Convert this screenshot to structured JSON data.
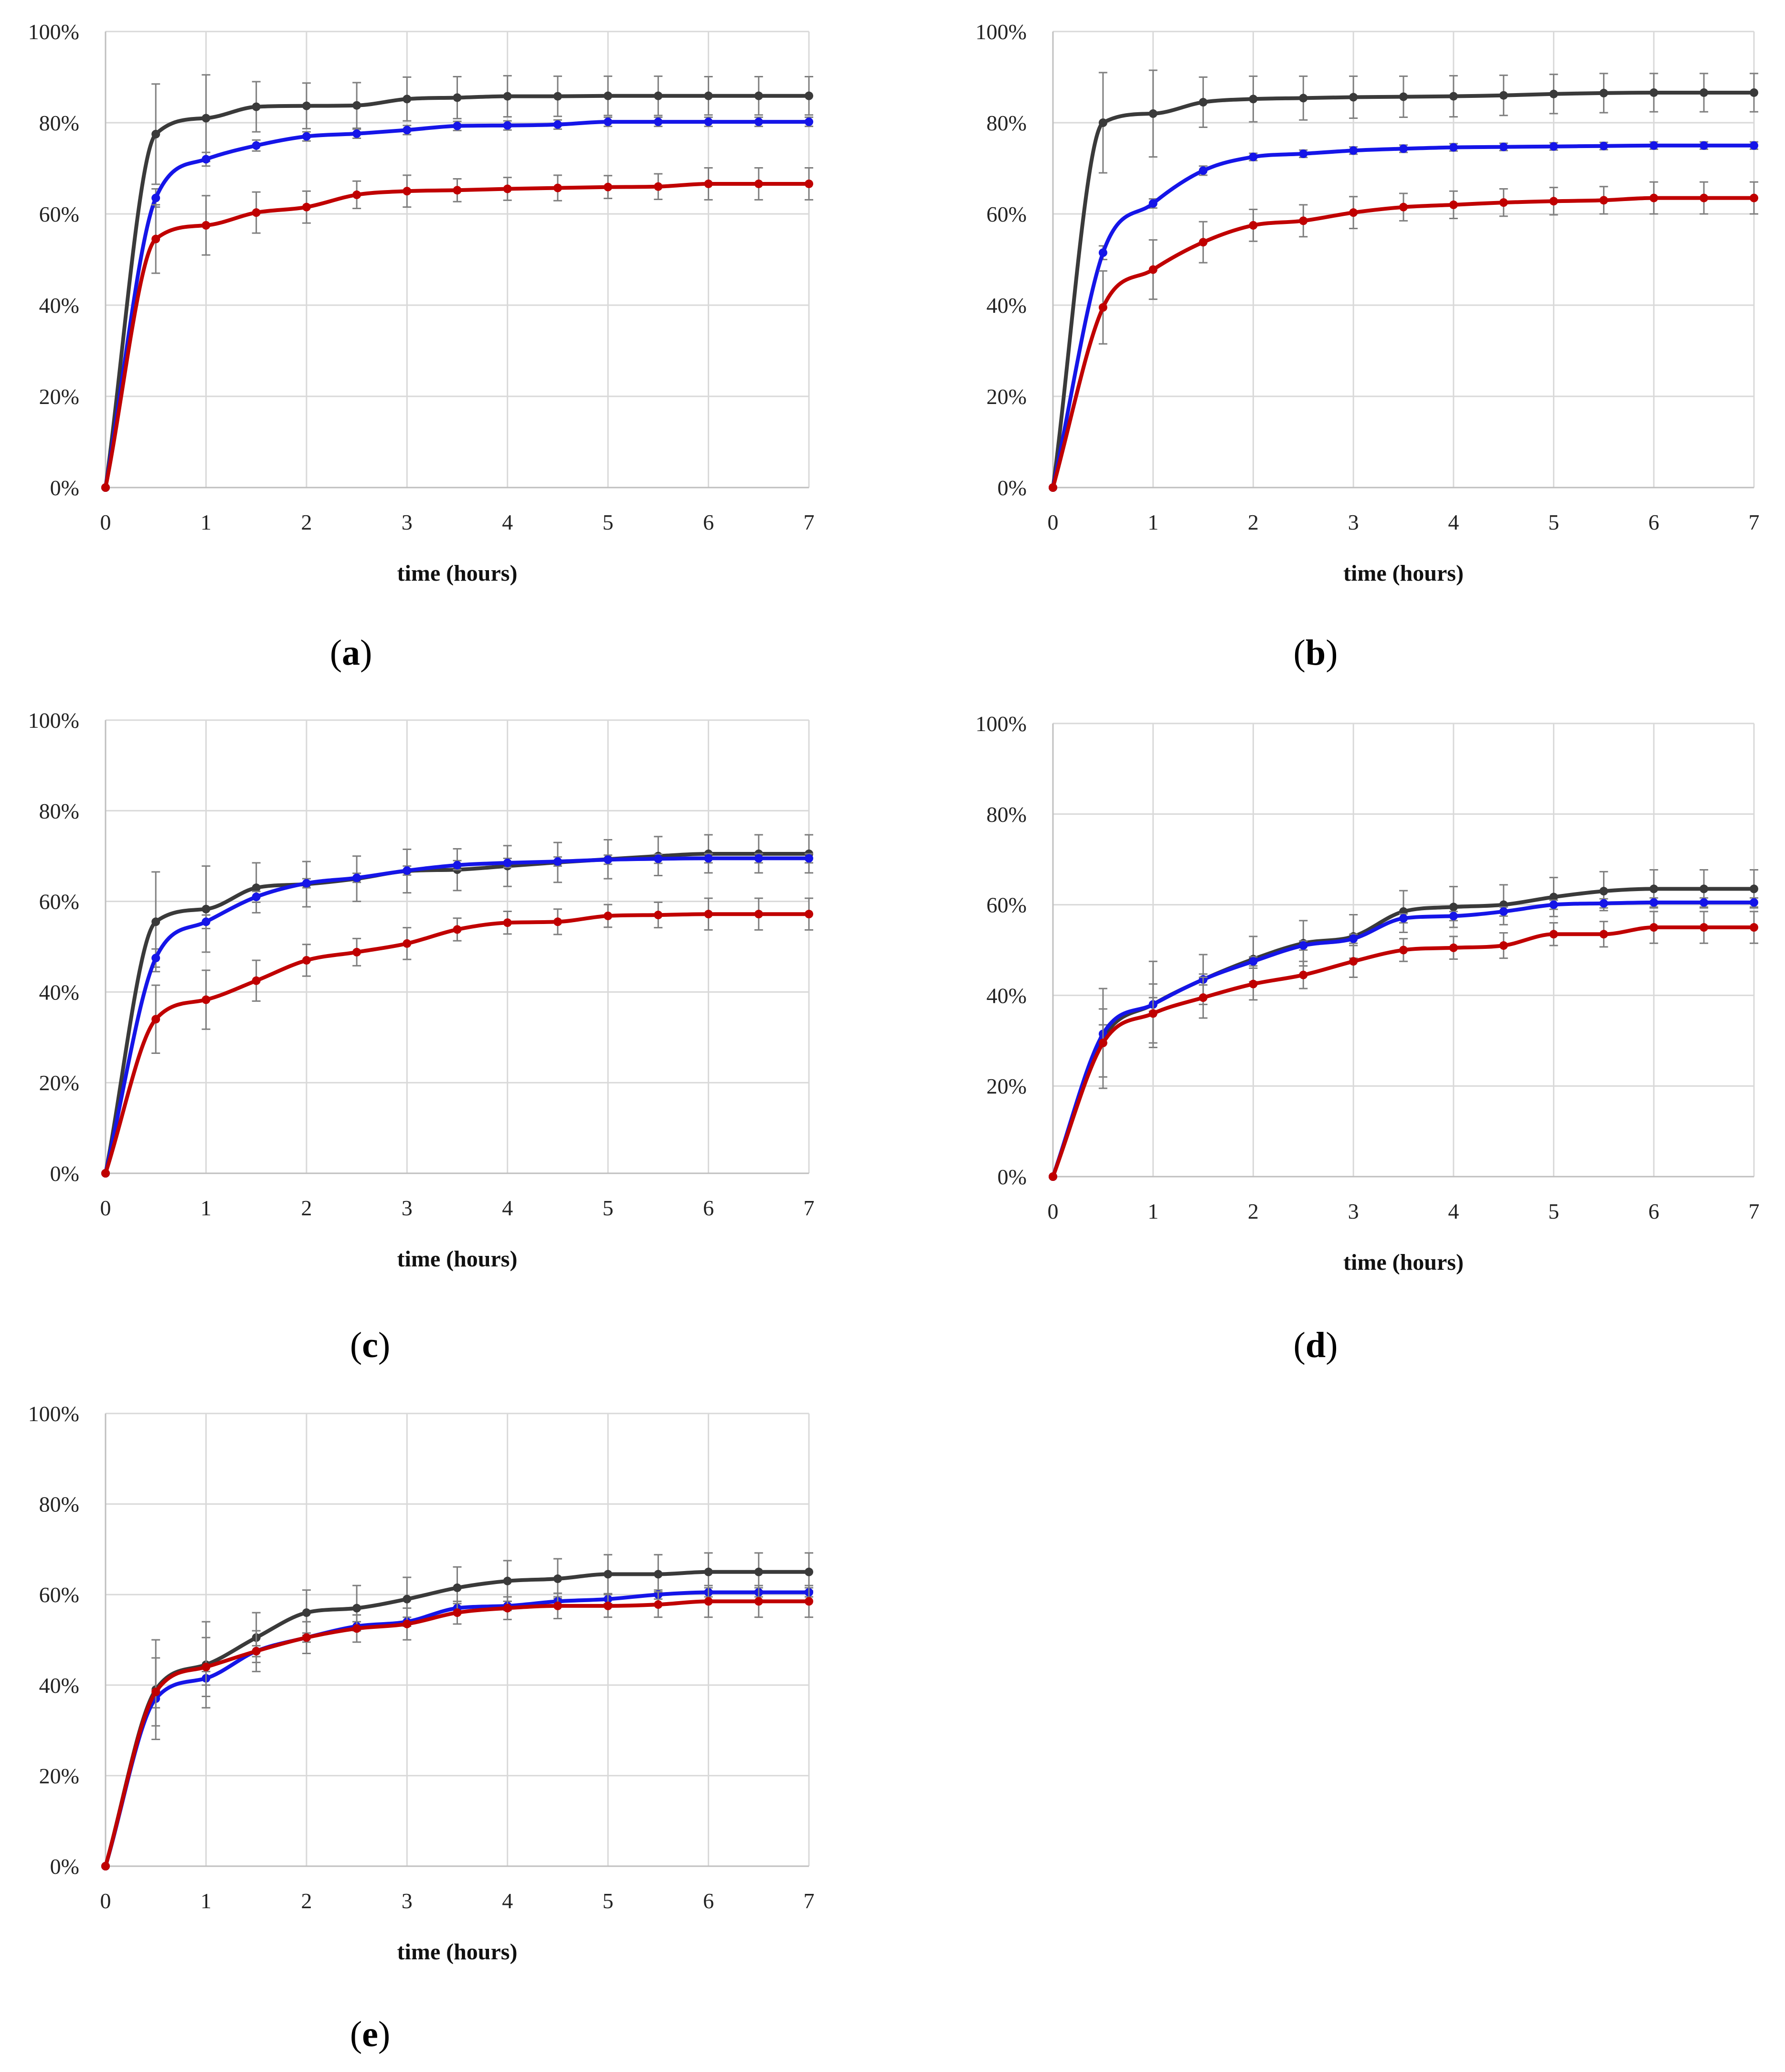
{
  "chart_data": [
    {
      "type": "line",
      "label_letter": "a",
      "xlabel": "time (hours)",
      "ylabel": "",
      "xlim": [
        0,
        7
      ],
      "ylim": [
        0,
        100
      ],
      "x_ticks": [
        "0",
        "1",
        "2",
        "3",
        "4",
        "5",
        "6",
        "7"
      ],
      "y_ticks": [
        "0%",
        "20%",
        "40%",
        "60%",
        "80%",
        "100%"
      ],
      "grid": true,
      "x": [
        0,
        0.5,
        1,
        1.5,
        2,
        2.5,
        3,
        3.5,
        4,
        4.5,
        5,
        5.5,
        6,
        6.5,
        7
      ],
      "series": [
        {
          "name": "black",
          "color": "#3a3a3a",
          "values": [
            0,
            77.5,
            81,
            83.5,
            83.7,
            83.8,
            85.2,
            85.5,
            85.8,
            85.8,
            85.9,
            85.9,
            85.9,
            85.9,
            85.9
          ],
          "errors": [
            0,
            11,
            9.5,
            5.5,
            5,
            5,
            4.8,
            4.6,
            4.5,
            4.4,
            4.3,
            4.3,
            4.2,
            4.2,
            4.2
          ]
        },
        {
          "name": "blue",
          "color": "#1515e8",
          "values": [
            0,
            63.5,
            72,
            75,
            77,
            77.6,
            78.4,
            79.3,
            79.4,
            79.6,
            80.2,
            80.2,
            80.2,
            80.2,
            80.2
          ],
          "errors": [
            0,
            2,
            1.5,
            1.2,
            1,
            1,
            1,
            1,
            1,
            1,
            1,
            1,
            1,
            1,
            1
          ]
        },
        {
          "name": "red",
          "color": "#c00000",
          "values": [
            0,
            54.5,
            57.5,
            60.3,
            61.5,
            64.2,
            65,
            65.2,
            65.5,
            65.7,
            65.9,
            66,
            66.6,
            66.6,
            66.6
          ],
          "errors": [
            0,
            7.5,
            6.5,
            4.5,
            3.5,
            3,
            3.5,
            2.5,
            2.5,
            2.8,
            2.5,
            2.8,
            3.5,
            3.5,
            3.5
          ]
        }
      ]
    },
    {
      "type": "line",
      "label_letter": "b",
      "xlabel": "time (hours)",
      "ylabel": "",
      "xlim": [
        0,
        7
      ],
      "ylim": [
        0,
        100
      ],
      "x_ticks": [
        "0",
        "1",
        "2",
        "3",
        "4",
        "5",
        "6",
        "7"
      ],
      "y_ticks": [
        "0%",
        "20%",
        "40%",
        "60%",
        "80%",
        "100%"
      ],
      "grid": true,
      "x": [
        0,
        0.5,
        1,
        1.5,
        2,
        2.5,
        3,
        3.5,
        4,
        4.5,
        5,
        5.5,
        6,
        6.5,
        7
      ],
      "series": [
        {
          "name": "black",
          "color": "#3a3a3a",
          "values": [
            0,
            80,
            82,
            84.5,
            85.2,
            85.4,
            85.6,
            85.7,
            85.8,
            86,
            86.3,
            86.5,
            86.6,
            86.6,
            86.6
          ],
          "errors": [
            0,
            11,
            9.5,
            5.5,
            5,
            4.8,
            4.6,
            4.5,
            4.5,
            4.4,
            4.3,
            4.3,
            4.2,
            4.2,
            4.2
          ]
        },
        {
          "name": "blue",
          "color": "#1515e8",
          "values": [
            0,
            51.5,
            62.3,
            69.5,
            72.5,
            73.2,
            73.9,
            74.3,
            74.6,
            74.7,
            74.8,
            74.9,
            75,
            75,
            75
          ],
          "errors": [
            0,
            1.5,
            1,
            1,
            0.8,
            0.8,
            0.8,
            0.8,
            0.8,
            0.8,
            0.8,
            0.8,
            0.8,
            0.8,
            0.8
          ]
        },
        {
          "name": "red",
          "color": "#c00000",
          "values": [
            0,
            39.5,
            47.8,
            53.8,
            57.5,
            58.5,
            60.3,
            61.5,
            62,
            62.5,
            62.8,
            63,
            63.5,
            63.5,
            63.5
          ],
          "errors": [
            0,
            8,
            6.5,
            4.5,
            3.5,
            3.5,
            3.5,
            3,
            3,
            3,
            3,
            3,
            3.5,
            3.5,
            3.5
          ]
        }
      ]
    },
    {
      "type": "line",
      "label_letter": "c",
      "xlabel": "time (hours)",
      "ylabel": "",
      "xlim": [
        0,
        7
      ],
      "ylim": [
        0,
        100
      ],
      "x_ticks": [
        "0",
        "1",
        "2",
        "3",
        "4",
        "5",
        "6",
        "7"
      ],
      "y_ticks": [
        "0%",
        "20%",
        "40%",
        "60%",
        "80%",
        "100%"
      ],
      "grid": true,
      "x": [
        0,
        0.5,
        1,
        1.5,
        2,
        2.5,
        3,
        3.5,
        4,
        4.5,
        5,
        5.5,
        6,
        6.5,
        7
      ],
      "series": [
        {
          "name": "black",
          "color": "#3a3a3a",
          "values": [
            0,
            55.5,
            58.3,
            63,
            63.8,
            65,
            66.7,
            67,
            67.8,
            68.6,
            69.3,
            70,
            70.5,
            70.5,
            70.5
          ],
          "errors": [
            0,
            11,
            9.5,
            5.5,
            5,
            5,
            4.8,
            4.6,
            4.5,
            4.4,
            4.3,
            4.3,
            4.2,
            4.2,
            4.2
          ]
        },
        {
          "name": "blue",
          "color": "#1515e8",
          "values": [
            0,
            47.5,
            55.5,
            61,
            64,
            65.2,
            66.8,
            68,
            68.5,
            68.8,
            69.2,
            69.4,
            69.5,
            69.5,
            69.5
          ],
          "errors": [
            0,
            2,
            1.5,
            1.2,
            1,
            1,
            1,
            1,
            1,
            1,
            1,
            1,
            1,
            1,
            1
          ]
        },
        {
          "name": "red",
          "color": "#c00000",
          "values": [
            0,
            34,
            38.3,
            42.5,
            47,
            48.8,
            50.7,
            53.8,
            55.3,
            55.5,
            56.8,
            57,
            57.2,
            57.2,
            57.2
          ],
          "errors": [
            0,
            7.5,
            6.5,
            4.5,
            3.5,
            3,
            3.5,
            2.5,
            2.5,
            2.8,
            2.5,
            2.8,
            3.5,
            3.5,
            3.5
          ]
        }
      ]
    },
    {
      "type": "line",
      "label_letter": "d",
      "xlabel": "time (hours)",
      "ylabel": "",
      "xlim": [
        0,
        7
      ],
      "ylim": [
        0,
        100
      ],
      "x_ticks": [
        "0",
        "1",
        "2",
        "3",
        "4",
        "5",
        "6",
        "7"
      ],
      "y_ticks": [
        "0%",
        "20%",
        "40%",
        "60%",
        "80%",
        "100%"
      ],
      "grid": true,
      "x": [
        0,
        0.5,
        1,
        1.5,
        2,
        2.5,
        3,
        3.5,
        4,
        4.5,
        5,
        5.5,
        6,
        6.5,
        7
      ],
      "series": [
        {
          "name": "black",
          "color": "#3a3a3a",
          "values": [
            0,
            30.5,
            38,
            43.5,
            48,
            51.5,
            53,
            58.5,
            59.5,
            60,
            61.7,
            63,
            63.5,
            63.5,
            63.5
          ],
          "errors": [
            0,
            11,
            9.5,
            5.5,
            5,
            5,
            4.8,
            4.6,
            4.5,
            4.4,
            4.3,
            4.3,
            4.2,
            4.2,
            4.2
          ]
        },
        {
          "name": "blue",
          "color": "#1515e8",
          "values": [
            0,
            31.5,
            38,
            43.5,
            47.5,
            51,
            52.5,
            57,
            57.5,
            58.5,
            60,
            60.3,
            60.5,
            60.5,
            60.5
          ],
          "errors": [
            0,
            2,
            1.5,
            1.2,
            1,
            1,
            1,
            1,
            1,
            1,
            1,
            1,
            1,
            1,
            1
          ]
        },
        {
          "name": "red",
          "color": "#c00000",
          "values": [
            0,
            29.5,
            36,
            39.5,
            42.5,
            44.5,
            47.5,
            50,
            50.5,
            51,
            53.5,
            53.5,
            55,
            55,
            55
          ],
          "errors": [
            0,
            7.5,
            6.5,
            4.5,
            3.5,
            3,
            3.5,
            2.5,
            2.5,
            2.8,
            2.5,
            2.8,
            3.5,
            3.5,
            3.5
          ]
        }
      ]
    },
    {
      "type": "line",
      "label_letter": "e",
      "xlabel": "time (hours)",
      "ylabel": "",
      "xlim": [
        0,
        7
      ],
      "ylim": [
        0,
        100
      ],
      "x_ticks": [
        "0",
        "1",
        "2",
        "3",
        "4",
        "5",
        "6",
        "7"
      ],
      "y_ticks": [
        "0%",
        "20%",
        "40%",
        "60%",
        "80%",
        "100%"
      ],
      "grid": true,
      "x": [
        0,
        0.5,
        1,
        1.5,
        2,
        2.5,
        3,
        3.5,
        4,
        4.5,
        5,
        5.5,
        6,
        6.5,
        7
      ],
      "series": [
        {
          "name": "black",
          "color": "#3a3a3a",
          "values": [
            0,
            39,
            44.5,
            50.5,
            56,
            57,
            59,
            61.5,
            63,
            63.5,
            64.5,
            64.5,
            65,
            65,
            65
          ],
          "errors": [
            0,
            11,
            9.5,
            5.5,
            5,
            5,
            4.8,
            4.6,
            4.5,
            4.4,
            4.3,
            4.3,
            4.2,
            4.2,
            4.2
          ]
        },
        {
          "name": "blue",
          "color": "#1515e8",
          "values": [
            0,
            37,
            41.5,
            47.5,
            50.5,
            53,
            54,
            57,
            57.5,
            58.5,
            59,
            60,
            60.5,
            60.5,
            60.5
          ],
          "errors": [
            0,
            2,
            1.5,
            1.2,
            1,
            1,
            1,
            1,
            1,
            1,
            1,
            1,
            1,
            1,
            1
          ]
        },
        {
          "name": "red",
          "color": "#c00000",
          "values": [
            0,
            38.5,
            44,
            47.5,
            50.5,
            52.5,
            53.5,
            56,
            57,
            57.5,
            57.5,
            57.8,
            58.5,
            58.5,
            58.5
          ],
          "errors": [
            0,
            7.5,
            6.5,
            4.5,
            3.5,
            3,
            3.5,
            2.5,
            2.5,
            2.8,
            2.5,
            2.8,
            3.5,
            3.5,
            3.5
          ]
        }
      ]
    }
  ]
}
